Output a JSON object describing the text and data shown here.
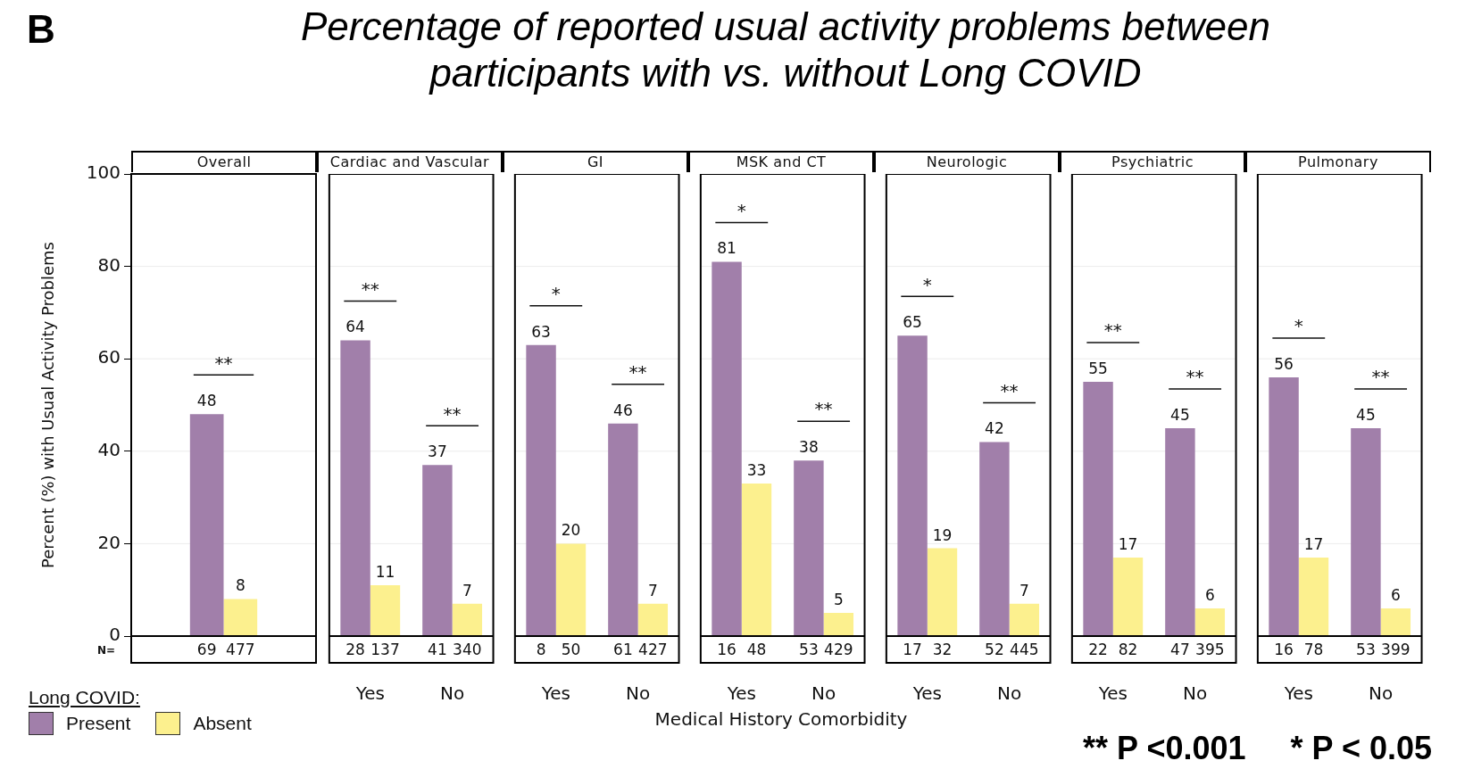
{
  "chart_data": [
    {
      "type": "bar",
      "subtitle": "Overall",
      "ylabel": "Percent (%) with Usual Activity Problems",
      "legend_title": "Long COVID:",
      "legend": "bottom left",
      "categories": [
        null
      ],
      "series": [
        {
          "name": "Present",
          "color": "#a17faa",
          "values": [
            48
          ]
        },
        {
          "name": "Absent",
          "color": "#fcf08e",
          "values": [
            8
          ]
        }
      ],
      "ylim": [
        0,
        100
      ],
      "yticks": [
        0,
        20,
        40,
        60,
        80,
        100
      ],
      "grid": "y",
      "data_labels": true,
      "annotations": [
        "B",
        "N=",
        "69",
        "477",
        "**"
      ]
    },
    {
      "type": "bar",
      "subtitle": "Cardiac and Vascular",
      "categories": [
        "Yes",
        "No"
      ],
      "series": [
        {
          "color": "#a17faa",
          "values": [
            64,
            37
          ]
        },
        {
          "color": "#fcf08e",
          "values": [
            11,
            7
          ]
        }
      ],
      "ylim": [
        0,
        100
      ],
      "yticks": [
        0,
        20,
        40,
        60,
        80,
        100
      ],
      "grid": "y",
      "tick_labels": "x",
      "data_labels": true,
      "annotations": [
        "28",
        "137",
        "41",
        "340",
        "**",
        "**"
      ]
    },
    {
      "type": "bar",
      "subtitle": "GI",
      "categories": [
        "Yes",
        "No"
      ],
      "series": [
        {
          "color": "#a17faa",
          "values": [
            63,
            46
          ]
        },
        {
          "color": "#fcf08e",
          "values": [
            20,
            7
          ]
        }
      ],
      "ylim": [
        0,
        100
      ],
      "yticks": [
        0,
        20,
        40,
        60,
        80,
        100
      ],
      "grid": "y",
      "tick_labels": "x",
      "data_labels": true,
      "annotations": [
        "8",
        "50",
        "61",
        "427",
        "*",
        "**"
      ]
    },
    {
      "type": "bar",
      "title": "Percentage of reported usual activity problems between participants with vs. without Long COVID",
      "subtitle": "MSK and CT",
      "xlabel": "Medical History Comorbidity",
      "categories": [
        "Yes",
        "No"
      ],
      "series": [
        {
          "color": "#a17faa",
          "values": [
            81,
            38
          ]
        },
        {
          "color": "#fcf08e",
          "values": [
            33,
            5
          ]
        }
      ],
      "ylim": [
        0,
        100
      ],
      "yticks": [
        0,
        20,
        40,
        60,
        80,
        100
      ],
      "grid": "y",
      "tick_labels": "x",
      "data_labels": true,
      "annotations": [
        "16",
        "48",
        "53",
        "429",
        "*",
        "**"
      ]
    },
    {
      "type": "bar",
      "subtitle": "Neurologic",
      "categories": [
        "Yes",
        "No"
      ],
      "series": [
        {
          "color": "#a17faa",
          "values": [
            65,
            42
          ]
        },
        {
          "color": "#fcf08e",
          "values": [
            19,
            7
          ]
        }
      ],
      "ylim": [
        0,
        100
      ],
      "yticks": [
        0,
        20,
        40,
        60,
        80,
        100
      ],
      "grid": "y",
      "tick_labels": "x",
      "data_labels": true,
      "annotations": [
        "17",
        "32",
        "52",
        "445",
        "*",
        "**"
      ]
    },
    {
      "type": "bar",
      "subtitle": "Psychiatric",
      "categories": [
        "Yes",
        "No"
      ],
      "series": [
        {
          "color": "#a17faa",
          "values": [
            55,
            45
          ]
        },
        {
          "color": "#fcf08e",
          "values": [
            17,
            6
          ]
        }
      ],
      "ylim": [
        0,
        100
      ],
      "yticks": [
        0,
        20,
        40,
        60,
        80,
        100
      ],
      "grid": "y",
      "tick_labels": "x",
      "data_labels": true,
      "annotations": [
        "22",
        "82",
        "47",
        "395",
        "**",
        "**"
      ]
    },
    {
      "type": "bar",
      "subtitle": "Pulmonary",
      "categories": [
        "Yes",
        "No"
      ],
      "series": [
        {
          "color": "#a17faa",
          "values": [
            56,
            45
          ]
        },
        {
          "color": "#fcf08e",
          "values": [
            17,
            6
          ]
        }
      ],
      "ylim": [
        0,
        100
      ],
      "yticks": [
        0,
        20,
        40,
        60,
        80,
        100
      ],
      "grid": "y",
      "tick_labels": "x",
      "data_labels": true,
      "annotations": [
        "16",
        "78",
        "53",
        "399",
        "*",
        "**",
        "** P <0.001     * P < 0.05"
      ]
    }
  ]
}
